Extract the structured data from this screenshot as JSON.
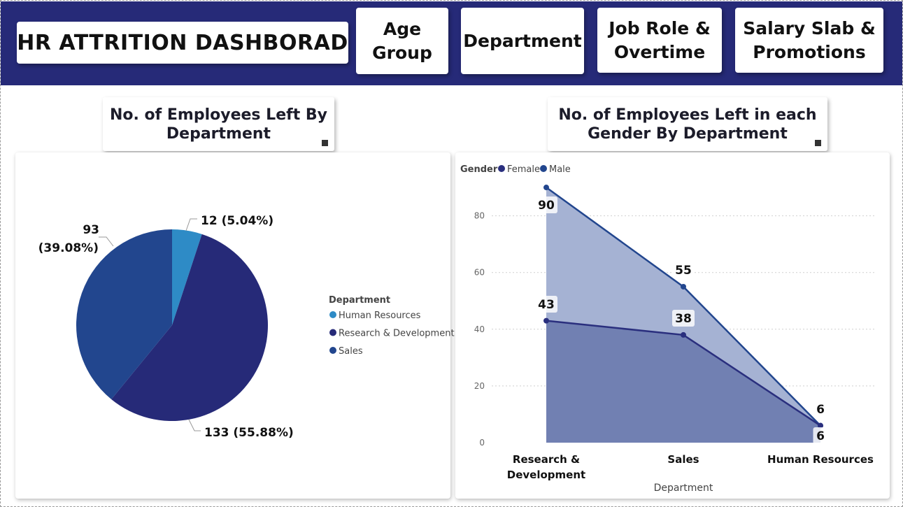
{
  "header": {
    "title": "HR ATTRITION DASHBORAD",
    "nav": {
      "age_line1": "Age",
      "age_line2": "Group",
      "department": "Department",
      "job_line1": "Job Role &",
      "job_line2": "Overtime",
      "salary_line1": "Salary Slab &",
      "salary_line2": "Promotions"
    }
  },
  "left_title": {
    "line1": "No. of Employees Left By",
    "line2": "Department"
  },
  "right_title": {
    "line1": "No. of Employees Left in each",
    "line2": "Gender By Department"
  },
  "colors": {
    "header_bg": "#262a78",
    "hr": "#2e8bc6",
    "rd": "#262a78",
    "sales": "#22468e",
    "female": "#2a2f7e",
    "male": "#22468e"
  },
  "chart_data": [
    {
      "type": "pie",
      "legend_title": "Department",
      "slices": [
        {
          "label": "Human Resources",
          "value": 12,
          "data_label": "12 (5.04%)",
          "color": "#2e8bc6"
        },
        {
          "label": "Research & Development",
          "value": 133,
          "data_label": "133 (55.88%)",
          "color": "#262a78"
        },
        {
          "label": "Sales",
          "value": 93,
          "data_label_line1": "93",
          "data_label_line2": "(39.08%)",
          "color": "#22468e"
        }
      ],
      "legend_position": "right"
    },
    {
      "type": "area",
      "legend_title": "Gender",
      "categories": [
        "Research & Development",
        "Sales",
        "Human Resources"
      ],
      "category_lines": [
        [
          "Research &",
          "Development"
        ],
        [
          "Sales"
        ],
        [
          "Human Resources"
        ]
      ],
      "series": [
        {
          "name": "Female",
          "values": [
            43,
            38,
            6
          ],
          "color": "#2a2f7e"
        },
        {
          "name": "Male",
          "values": [
            90,
            55,
            6
          ],
          "color": "#22468e"
        }
      ],
      "xlabel": "Department",
      "ylabel": "",
      "ylim": [
        0,
        95
      ],
      "yticks": [
        "0",
        "20",
        "40",
        "60",
        "80"
      ],
      "grid": "horizontal dotted",
      "legend_position": "top-left"
    }
  ]
}
